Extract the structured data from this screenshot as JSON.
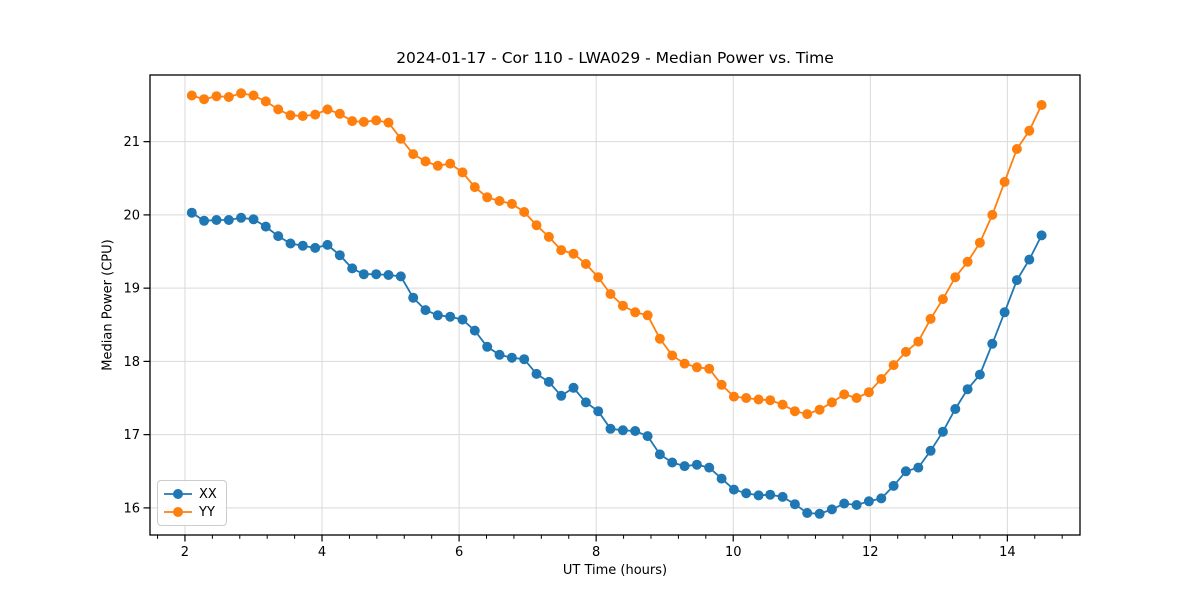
{
  "chart_data": {
    "type": "line",
    "title": "2024-01-17 - Cor 110 - LWA029 - Median Power vs. Time",
    "xlabel": "UT Time (hours)",
    "ylabel": "Median Power (CPU)",
    "xlim": [
      1.49,
      15.06
    ],
    "ylim": [
      15.63,
      21.91
    ],
    "x_ticks": [
      2,
      4,
      6,
      8,
      10,
      12,
      14
    ],
    "y_ticks": [
      16,
      17,
      18,
      19,
      20,
      21
    ],
    "x_minor_tick_step": 0.4,
    "grid": true,
    "grid_color": "#d9d9d9",
    "background_color": "#ffffff",
    "legend_position": "lower left",
    "marker": "o",
    "x": [
      2.1,
      2.28,
      2.46,
      2.64,
      2.82,
      3.0,
      3.18,
      3.36,
      3.54,
      3.72,
      3.9,
      4.08,
      4.26,
      4.44,
      4.61,
      4.79,
      4.97,
      5.15,
      5.33,
      5.51,
      5.69,
      5.87,
      6.05,
      6.23,
      6.41,
      6.59,
      6.77,
      6.95,
      7.13,
      7.31,
      7.49,
      7.67,
      7.85,
      8.03,
      8.21,
      8.39,
      8.57,
      8.75,
      8.93,
      9.11,
      9.29,
      9.47,
      9.65,
      9.83,
      10.01,
      10.19,
      10.37,
      10.54,
      10.72,
      10.9,
      11.08,
      11.26,
      11.44,
      11.62,
      11.8,
      11.98,
      12.16,
      12.34,
      12.52,
      12.7,
      12.88,
      13.06,
      13.24,
      13.42,
      13.6,
      13.78,
      13.96,
      14.14,
      14.32,
      14.5
    ],
    "series": [
      {
        "name": "XX",
        "color": "#1f77b4",
        "values": [
          20.03,
          19.92,
          19.93,
          19.93,
          19.96,
          19.94,
          19.84,
          19.71,
          19.61,
          19.58,
          19.55,
          19.59,
          19.45,
          19.27,
          19.19,
          19.19,
          19.18,
          19.16,
          18.87,
          18.7,
          18.63,
          18.61,
          18.57,
          18.42,
          18.2,
          18.09,
          18.05,
          18.03,
          17.83,
          17.72,
          17.53,
          17.64,
          17.44,
          17.32,
          17.08,
          17.06,
          17.05,
          16.98,
          16.73,
          16.62,
          16.57,
          16.59,
          16.55,
          16.4,
          16.25,
          16.2,
          16.17,
          16.18,
          16.15,
          16.05,
          15.93,
          15.92,
          15.98,
          16.06,
          16.04,
          16.09,
          16.13,
          16.3,
          16.5,
          16.55,
          16.78,
          17.04,
          17.35,
          17.62,
          17.82,
          18.24,
          18.67,
          19.11,
          19.39,
          19.72
        ]
      },
      {
        "name": "YY",
        "color": "#ff7f0e",
        "values": [
          21.63,
          21.58,
          21.62,
          21.61,
          21.66,
          21.63,
          21.55,
          21.44,
          21.36,
          21.35,
          21.37,
          21.44,
          21.38,
          21.28,
          21.27,
          21.29,
          21.26,
          21.04,
          20.83,
          20.73,
          20.67,
          20.7,
          20.58,
          20.38,
          20.24,
          20.19,
          20.15,
          20.04,
          19.86,
          19.7,
          19.52,
          19.47,
          19.33,
          19.15,
          18.92,
          18.76,
          18.67,
          18.63,
          18.31,
          18.08,
          17.97,
          17.92,
          17.9,
          17.68,
          17.52,
          17.5,
          17.48,
          17.47,
          17.41,
          17.32,
          17.28,
          17.34,
          17.44,
          17.55,
          17.5,
          17.58,
          17.76,
          17.95,
          18.13,
          18.27,
          18.58,
          18.85,
          19.15,
          19.36,
          19.62,
          20.0,
          20.45,
          20.9,
          21.15,
          21.5
        ]
      }
    ]
  }
}
